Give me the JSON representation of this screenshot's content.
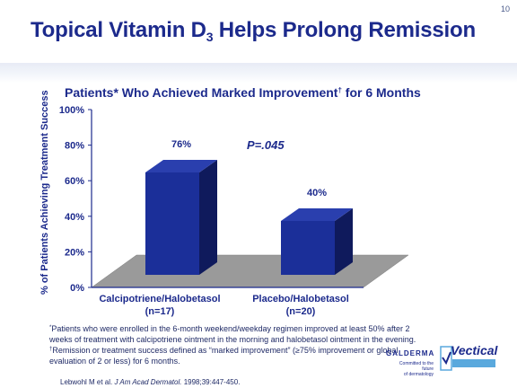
{
  "slide_number": "10",
  "title_main": "Topical Vitamin D",
  "title_sub": "3",
  "title_rest": " Helps Prolong Remission",
  "subtitle_main": "Patients* Who Achieved Marked Improvement",
  "subtitle_mark": "†",
  "subtitle_rest": " for 6 Months",
  "pvalue": "P=.045",
  "footnotes": {
    "line1_mark": "*",
    "line1": "Patients who were enrolled in the 6-month weekend/weekday regimen improved at least 50% after 2 weeks of treatment with calcipotriene ointment in the morning and halobetasol ointment in the evening.",
    "line2_mark": "†",
    "line2": "Remission or treatment success defined as “marked improvement” (≥75% improvement or global evaluation of 2 or less) for 6 months."
  },
  "reference_authors": "Lebwohl M et al. ",
  "reference_journal": "J Am Acad Dermatol.",
  "reference_details": " 1998;39:447-450.",
  "logo": {
    "company": "GALDERMA",
    "tagline_1": "Committed to the future",
    "tagline_2": "of dermatology",
    "product": "Vectical"
  },
  "colors": {
    "title": "#1c2a8c",
    "bar_front": "#1b2f99",
    "bar_side": "#0f1a5c",
    "bar_top": "#2a3fae",
    "floor": "#9a9a9a",
    "axis": "#1c2a8c"
  },
  "chart_data": {
    "type": "bar",
    "title": "Patients* Who Achieved Marked Improvement† for 6 Months",
    "ylabel": "% of Patients Achieving Treatment Success",
    "xlabel": "",
    "ylim": [
      0,
      100
    ],
    "yticks": [
      0,
      20,
      40,
      60,
      80,
      100
    ],
    "ytick_labels": [
      "0%",
      "20%",
      "40%",
      "60%",
      "80%",
      "100%"
    ],
    "categories": [
      "Calcipotriene/Halobetasol (n=17)",
      "Placebo/Halobetasol (n=20)"
    ],
    "category_lines": [
      [
        "Calcipotriene/Halobetasol",
        "(n=17)"
      ],
      [
        "Placebo/Halobetasol",
        "(n=20)"
      ]
    ],
    "values": [
      76,
      40
    ],
    "value_labels": [
      "76%",
      "40%"
    ],
    "legend": "none",
    "grid": false,
    "style": "3d"
  }
}
